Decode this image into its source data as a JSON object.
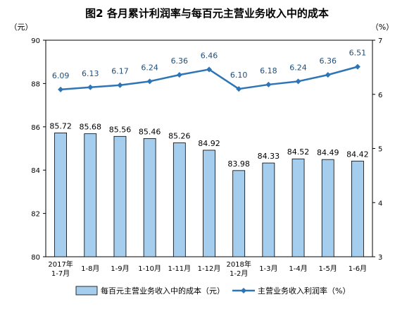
{
  "chart_data": {
    "type": "bar+line",
    "title": "图2  各月累计利润率与每百元主营业务收入中的成本",
    "left_axis": {
      "unit_label": "（元）",
      "range": [
        80,
        90
      ],
      "ticks": [
        80,
        82,
        84,
        86,
        88,
        90
      ]
    },
    "right_axis": {
      "unit_label": "（%）",
      "range": [
        3,
        7
      ],
      "ticks": [
        3,
        4,
        5,
        6,
        7
      ]
    },
    "categories": [
      [
        "2017年",
        "1-7月"
      ],
      [
        "1-8月"
      ],
      [
        "1-9月"
      ],
      [
        "1-10月"
      ],
      [
        "1-11月"
      ],
      [
        "1-12月"
      ],
      [
        "2018年",
        "1-2月"
      ],
      [
        "1-3月"
      ],
      [
        "1-4月"
      ],
      [
        "1-5月"
      ],
      [
        "1-6月"
      ]
    ],
    "series": [
      {
        "name": "每百元主营业务收入中的成本（元）",
        "type": "bar",
        "axis": "left",
        "color": "#a5cdee",
        "labels": [
          "85.72",
          "85.68",
          "85.56",
          "85.46",
          "85.26",
          "84.92",
          "83.98",
          "84.33",
          "84.52",
          "84.49",
          "84.42"
        ],
        "values": [
          85.72,
          85.68,
          85.56,
          85.46,
          85.26,
          84.92,
          83.98,
          84.33,
          84.52,
          84.49,
          84.42
        ]
      },
      {
        "name": "主营业务收入利润率（%）",
        "type": "line",
        "axis": "right",
        "color": "#2e75b6",
        "labels": [
          "6.09",
          "6.13",
          "6.17",
          "6.24",
          "6.36",
          "6.46",
          "6.10",
          "6.18",
          "6.24",
          "6.36",
          "6.51"
        ],
        "values": [
          6.09,
          6.13,
          6.17,
          6.24,
          6.36,
          6.46,
          6.1,
          6.18,
          6.24,
          6.36,
          6.51
        ]
      }
    ],
    "grid": false,
    "legend_position": "bottom"
  }
}
